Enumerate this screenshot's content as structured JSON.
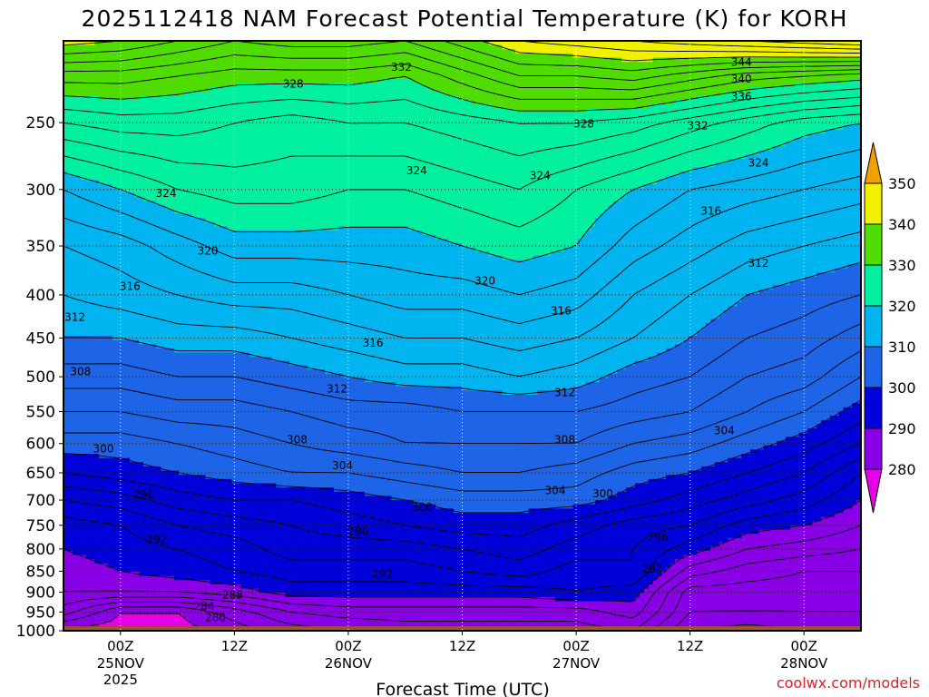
{
  "chart_data": {
    "type": "contour",
    "title": "2025112418 NAM Forecast Potential Temperature (K) for KORH",
    "xlabel": "Forecast Time (UTC)",
    "ylabel": "",
    "y_scale": "log",
    "y_inverted": true,
    "ylim": [
      1000,
      200
    ],
    "y_ticks": [
      250,
      300,
      350,
      400,
      450,
      500,
      550,
      600,
      650,
      700,
      750,
      800,
      850,
      900,
      950,
      1000
    ],
    "x_ticks": [
      {
        "label": "00Z",
        "sub": [
          "25NOV",
          "2025"
        ],
        "hour": 0
      },
      {
        "label": "12Z",
        "sub": [],
        "hour": 12
      },
      {
        "label": "00Z",
        "sub": [
          "26NOV"
        ],
        "hour": 24
      },
      {
        "label": "12Z",
        "sub": [],
        "hour": 36
      },
      {
        "label": "00Z",
        "sub": [
          "27NOV"
        ],
        "hour": 48
      },
      {
        "label": "12Z",
        "sub": [],
        "hour": 60
      },
      {
        "label": "00Z",
        "sub": [
          "28NOV"
        ],
        "hour": 72
      }
    ],
    "xlim_hours": [
      -6,
      78
    ],
    "grid": true,
    "colorbar": {
      "levels": [
        280,
        290,
        300,
        310,
        320,
        330,
        340,
        350
      ],
      "colors": [
        "#e600e6",
        "#8a00e6",
        "#0000d8",
        "#1e64e6",
        "#00b4f0",
        "#00f0a0",
        "#50dc00",
        "#f0f000",
        "#f0a000"
      ]
    },
    "contour_levels": [
      276,
      278,
      280,
      282,
      284,
      286,
      288,
      290,
      292,
      294,
      296,
      298,
      300,
      302,
      304,
      306,
      308,
      310,
      312,
      314,
      316,
      318,
      320,
      322,
      324,
      326,
      328,
      330,
      332,
      334,
      336,
      338,
      340,
      342,
      344,
      346,
      348
    ],
    "x_hours": [
      -6,
      0,
      6,
      12,
      18,
      24,
      30,
      36,
      42,
      48,
      54,
      60,
      66,
      72,
      78
    ],
    "profiles": [
      {
        "p": 1000,
        "theta": [
          279,
          279,
          279,
          281,
          283,
          284,
          285,
          285,
          285,
          285,
          286,
          280,
          279,
          280,
          280
        ]
      },
      {
        "p": 950,
        "theta": [
          285,
          280,
          280,
          283,
          286,
          287,
          287,
          287,
          287,
          287,
          289,
          282,
          282,
          282,
          282
        ]
      },
      {
        "p": 900,
        "theta": [
          288,
          288,
          288,
          289,
          291,
          291,
          291,
          291,
          291,
          292,
          291,
          283,
          283,
          283,
          283
        ]
      },
      {
        "p": 850,
        "theta": [
          289,
          290,
          291,
          292,
          293,
          293,
          293,
          294,
          295,
          293,
          294,
          287,
          285,
          284,
          284
        ]
      },
      {
        "p": 800,
        "theta": [
          290,
          291,
          292,
          293,
          295,
          295,
          295,
          296,
          297,
          295,
          294,
          291,
          288,
          287,
          286
        ]
      },
      {
        "p": 750,
        "theta": [
          291,
          292,
          294,
          295,
          296,
          297,
          298,
          299,
          299,
          297,
          295,
          294,
          291,
          290,
          288
        ]
      },
      {
        "p": 700,
        "theta": [
          294,
          295,
          297,
          298,
          298,
          299,
          300,
          301,
          301,
          301,
          299,
          297,
          295,
          293,
          290
        ]
      },
      {
        "p": 650,
        "theta": [
          298,
          299,
          300,
          301,
          302,
          302,
          303,
          304,
          304,
          303,
          301,
          300,
          298,
          296,
          292
        ]
      },
      {
        "p": 600,
        "theta": [
          301,
          301,
          302,
          303,
          304,
          305,
          306,
          306,
          306,
          306,
          304,
          303,
          301,
          299,
          296
        ]
      },
      {
        "p": 550,
        "theta": [
          304,
          304,
          305,
          305,
          306,
          307,
          307,
          308,
          308,
          308,
          307,
          306,
          304,
          302,
          299
        ]
      },
      {
        "p": 500,
        "theta": [
          307,
          307,
          308,
          308,
          309,
          310,
          311,
          311,
          312,
          311,
          309,
          308,
          306,
          305,
          302
        ]
      },
      {
        "p": 450,
        "theta": [
          310,
          310,
          311,
          311,
          312,
          313,
          314,
          314,
          315,
          314,
          312,
          310,
          308,
          307,
          305
        ]
      },
      {
        "p": 400,
        "theta": [
          312,
          313,
          314,
          315,
          315,
          316,
          317,
          317,
          318,
          317,
          314,
          312,
          310,
          309,
          308
        ]
      },
      {
        "p": 350,
        "theta": [
          314,
          315,
          317,
          319,
          319,
          319,
          319,
          320,
          321,
          320,
          317,
          315,
          313,
          312,
          311
        ]
      },
      {
        "p": 300,
        "theta": [
          318,
          320,
          322,
          323,
          323,
          322,
          322,
          323,
          324,
          322,
          320,
          318,
          317,
          316,
          315
        ]
      },
      {
        "p": 250,
        "theta": [
          326,
          327,
          327,
          326,
          325,
          326,
          326,
          327,
          328,
          328,
          327,
          325,
          323,
          321,
          320
        ]
      },
      {
        "p": 220,
        "theta": [
          333,
          333,
          332,
          331,
          331,
          331,
          330,
          333,
          336,
          336,
          337,
          335,
          333,
          332,
          331
        ]
      },
      {
        "p": 200,
        "theta": [
          341,
          340,
          338,
          336,
          337,
          337,
          336,
          339,
          342,
          343,
          344,
          345,
          346,
          347,
          348
        ]
      }
    ],
    "contour_labels": [
      {
        "text": "344",
        "hour": 65.4,
        "p": 212
      },
      {
        "text": "340",
        "hour": 65.4,
        "p": 222
      },
      {
        "text": "336",
        "hour": 65.4,
        "p": 233
      },
      {
        "text": "332",
        "hour": 29.6,
        "p": 215
      },
      {
        "text": "332",
        "hour": 60.8,
        "p": 252
      },
      {
        "text": "328",
        "hour": 18.2,
        "p": 225
      },
      {
        "text": "328",
        "hour": 48.8,
        "p": 251
      },
      {
        "text": "324",
        "hour": 4.8,
        "p": 303
      },
      {
        "text": "324",
        "hour": 31.2,
        "p": 285
      },
      {
        "text": "324",
        "hour": 44.2,
        "p": 289
      },
      {
        "text": "324",
        "hour": 67.2,
        "p": 279
      },
      {
        "text": "320",
        "hour": 9.2,
        "p": 355
      },
      {
        "text": "320",
        "hour": 38.4,
        "p": 385
      },
      {
        "text": "316",
        "hour": 1.0,
        "p": 391
      },
      {
        "text": "316",
        "hour": 46.4,
        "p": 418
      },
      {
        "text": "316",
        "hour": 62.2,
        "p": 318
      },
      {
        "text": "316",
        "hour": 26.6,
        "p": 456
      },
      {
        "text": "312",
        "hour": -4.8,
        "p": 425
      },
      {
        "text": "312",
        "hour": 22.8,
        "p": 517
      },
      {
        "text": "312",
        "hour": 46.8,
        "p": 522
      },
      {
        "text": "312",
        "hour": 67.2,
        "p": 367
      },
      {
        "text": "308",
        "hour": -4.2,
        "p": 493
      },
      {
        "text": "308",
        "hour": 18.6,
        "p": 594
      },
      {
        "text": "308",
        "hour": 46.8,
        "p": 594
      },
      {
        "text": "304",
        "hour": 23.4,
        "p": 637
      },
      {
        "text": "304",
        "hour": 45.8,
        "p": 682
      },
      {
        "text": "304",
        "hour": 63.6,
        "p": 579
      },
      {
        "text": "300",
        "hour": -1.8,
        "p": 609
      },
      {
        "text": "300",
        "hour": 31.8,
        "p": 714
      },
      {
        "text": "300",
        "hour": 50.8,
        "p": 688
      },
      {
        "text": "296",
        "hour": 2.4,
        "p": 690
      },
      {
        "text": "296",
        "hour": 25.0,
        "p": 762
      },
      {
        "text": "296",
        "hour": 56.6,
        "p": 775
      },
      {
        "text": "292",
        "hour": 3.8,
        "p": 780
      },
      {
        "text": "292",
        "hour": 27.6,
        "p": 857
      },
      {
        "text": "292",
        "hour": 56.0,
        "p": 845
      },
      {
        "text": "288",
        "hour": 11.8,
        "p": 907
      },
      {
        "text": "284",
        "hour": 8.8,
        "p": 935
      },
      {
        "text": "280",
        "hour": 10.0,
        "p": 965
      }
    ]
  },
  "watermark": "coolwx.com/models"
}
